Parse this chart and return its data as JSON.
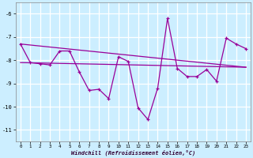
{
  "xlabel": "Windchill (Refroidissement éolien,°C)",
  "background_color": "#cceeff",
  "grid_color": "#ffffff",
  "line_color": "#990099",
  "x": [
    0,
    1,
    2,
    3,
    4,
    5,
    6,
    7,
    8,
    9,
    10,
    11,
    12,
    13,
    14,
    15,
    16,
    17,
    18,
    19,
    20,
    21,
    22,
    23
  ],
  "series1": [
    -7.3,
    -8.1,
    -8.15,
    -8.2,
    -7.6,
    -7.6,
    -8.5,
    -9.3,
    -9.25,
    -9.65,
    -7.85,
    -8.05,
    -10.05,
    -10.55,
    -9.2,
    -6.2,
    -8.35,
    -8.7,
    -8.7,
    -8.4,
    -8.9,
    -7.05,
    -7.3,
    -7.5
  ],
  "line1_x": [
    0,
    23
  ],
  "line1_y": [
    -7.3,
    -8.3
  ],
  "line2_x": [
    0,
    23
  ],
  "line2_y": [
    -8.1,
    -8.3
  ],
  "ylim": [
    -11.5,
    -5.5
  ],
  "yticks": [
    -11,
    -10,
    -9,
    -8,
    -7,
    -6
  ],
  "xticks": [
    0,
    1,
    2,
    3,
    4,
    5,
    6,
    7,
    8,
    9,
    10,
    11,
    12,
    13,
    14,
    15,
    16,
    17,
    18,
    19,
    20,
    21,
    22,
    23
  ],
  "xlim": [
    -0.5,
    23.5
  ]
}
